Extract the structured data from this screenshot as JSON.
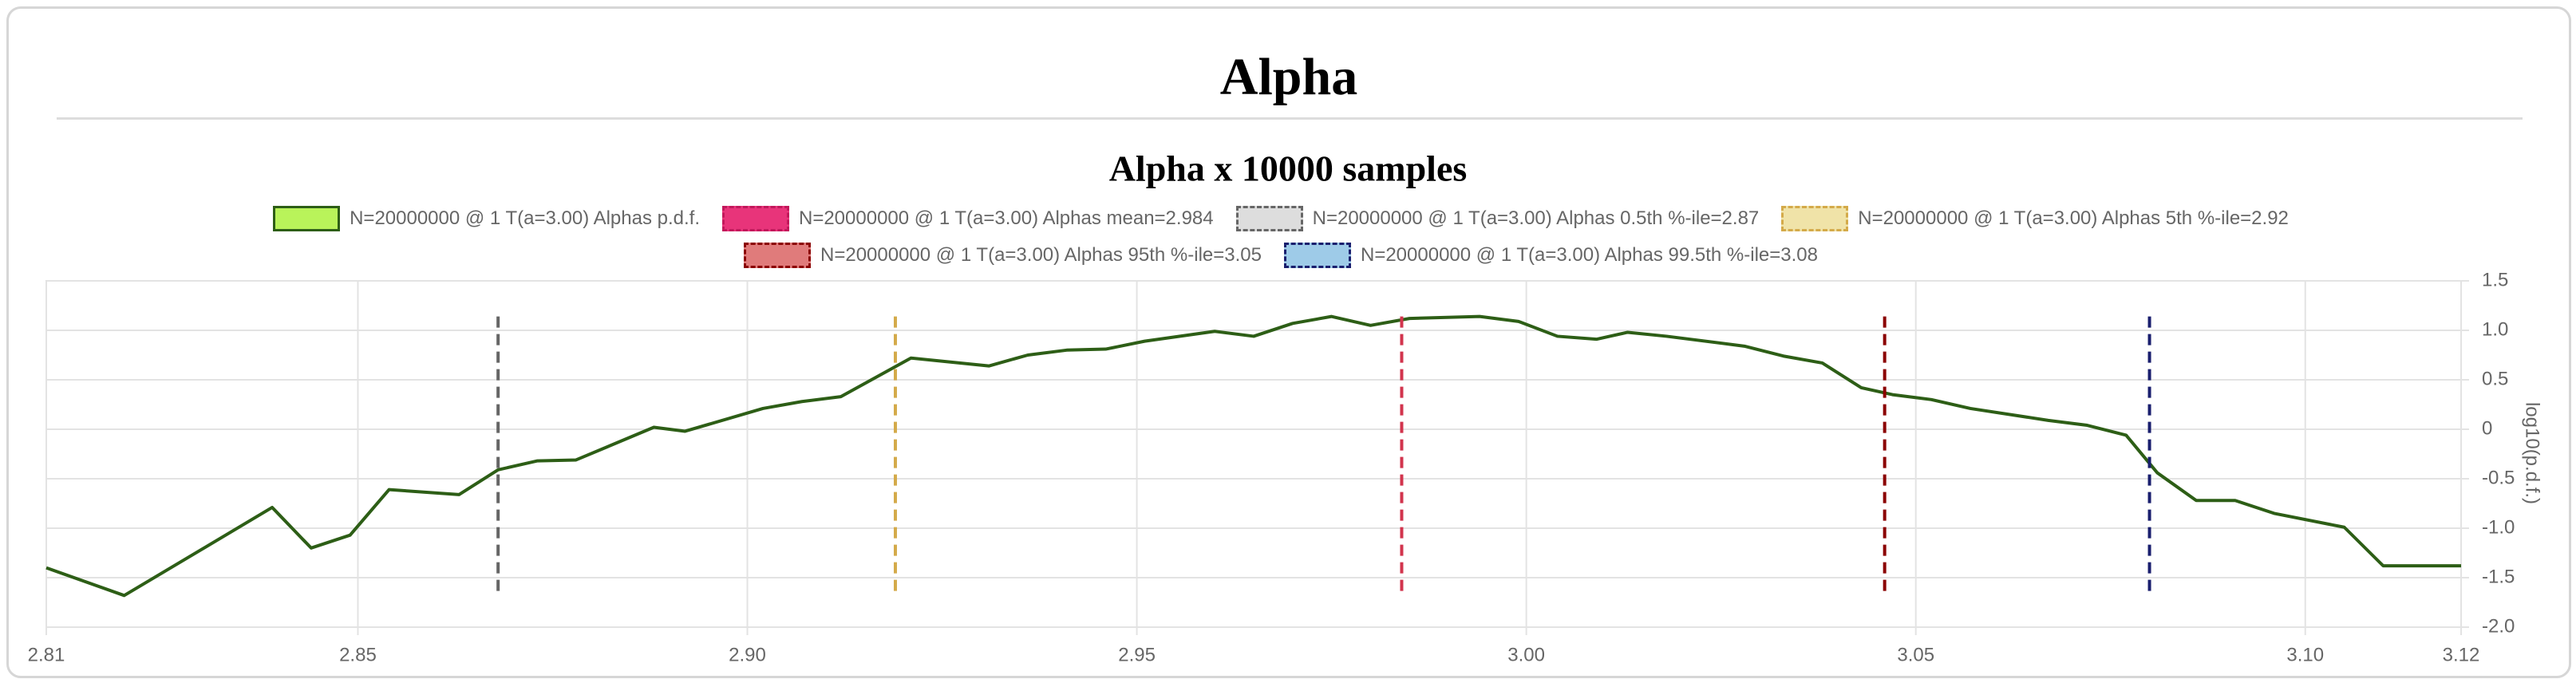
{
  "header": {
    "title": "Alpha"
  },
  "chart_data": {
    "type": "line",
    "title": "Alpha x 10000 samples",
    "y_label": "log10(p.d.f.)",
    "xlim": [
      2.81,
      3.12
    ],
    "xticks": [
      2.81,
      2.85,
      {
        "value": 2.9,
        "label": "2.90"
      },
      2.95,
      {
        "value": 3.0,
        "label": "3.00"
      },
      3.05,
      {
        "value": 3.1,
        "label": "3.10"
      },
      3.12
    ],
    "ylim": [
      -2,
      1.5
    ],
    "yticks": [
      1.5,
      {
        "value": 1,
        "label": "1.0"
      },
      0.5,
      0,
      -0.5,
      {
        "value": -1,
        "label": "-1.0"
      },
      -1.5,
      {
        "value": -2,
        "label": "-2.0"
      }
    ],
    "grid": true,
    "series": [
      {
        "name": "N=20000000 @ 1 T(a=3.00) Alphas p.d.f.",
        "color": "#2d5e16",
        "fill": "#b9f35a",
        "x": [
          2.81,
          2.82,
          2.839,
          2.844,
          2.849,
          2.854,
          2.863,
          2.868,
          2.873,
          2.878,
          2.888,
          2.892,
          2.902,
          2.907,
          2.912,
          2.921,
          2.931,
          2.936,
          2.941,
          2.946,
          2.951,
          2.96,
          2.965,
          2.97,
          2.975,
          2.98,
          2.985,
          2.994,
          2.999,
          3.004,
          3.009,
          3.013,
          3.018,
          3.028,
          3.033,
          3.038,
          3.043,
          3.047,
          3.052,
          3.057,
          3.067,
          3.072,
          3.077,
          3.081,
          3.086,
          3.091,
          3.096,
          3.105,
          3.11,
          3.12
        ],
        "values": [
          -1.4,
          -1.68,
          -0.79,
          -1.2,
          -1.07,
          -0.61,
          -0.66,
          -0.41,
          -0.32,
          -0.31,
          0.02,
          -0.02,
          0.21,
          0.28,
          0.33,
          0.72,
          0.64,
          0.75,
          0.8,
          0.81,
          0.89,
          0.99,
          0.94,
          1.07,
          1.14,
          1.05,
          1.12,
          1.14,
          1.09,
          0.94,
          0.91,
          0.98,
          0.94,
          0.84,
          0.74,
          0.67,
          0.42,
          0.35,
          0.3,
          0.21,
          0.09,
          0.04,
          -0.06,
          -0.44,
          -0.72,
          -0.72,
          -0.85,
          -0.99,
          -1.38,
          -1.38
        ]
      }
    ],
    "vlines": [
      {
        "name": "N=20000000 @ 1 T(a=3.00) Alphas mean=2.984",
        "color": "#d2344d",
        "fill": "#e8347a",
        "border": "#c2185b",
        "value": 2.984
      },
      {
        "name": "N=20000000 @ 1 T(a=3.00) Alphas 0.5th %-ile=2.87",
        "color": "#666666",
        "fill": "#dddddd",
        "border": "#666666",
        "value": 2.868
      },
      {
        "name": "N=20000000 @ 1 T(a=3.00) Alphas 5th %-ile=2.92",
        "color": "#d4aa4a",
        "fill": "#f0e3a8",
        "border": "#d4aa4a",
        "value": 2.919
      },
      {
        "name": "N=20000000 @ 1 T(a=3.00) Alphas 95th %-ile=3.05",
        "color": "#8b0000",
        "fill": "#e07b7b",
        "border": "#8b0000",
        "value": 3.046
      },
      {
        "name": "N=20000000 @ 1 T(a=3.00) Alphas 99.5th %-ile=3.08",
        "color": "#1a1f6e",
        "fill": "#9ecbe8",
        "border": "#1a1f6e",
        "value": 3.08
      }
    ]
  }
}
